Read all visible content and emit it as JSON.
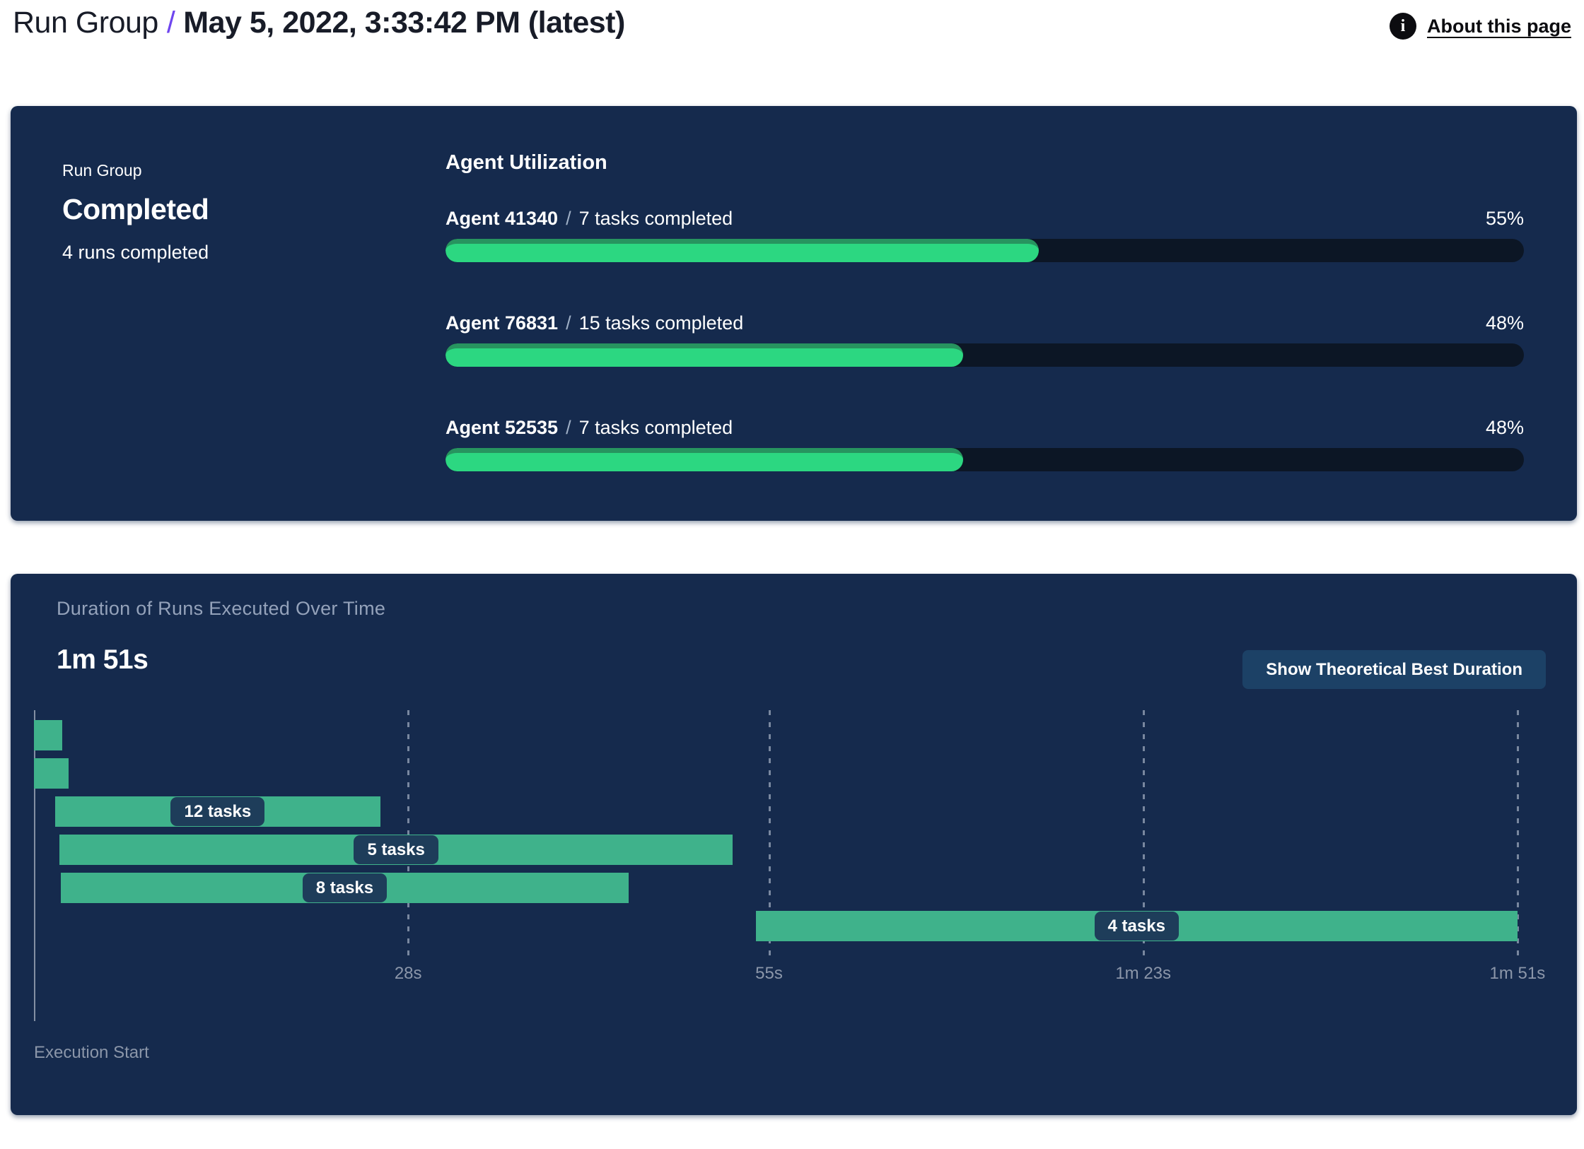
{
  "header": {
    "breadcrumb": "Run Group",
    "separator": "/",
    "title": "May 5, 2022, 3:33:42 PM (latest)",
    "about": {
      "icon": "i",
      "label": "About this page"
    }
  },
  "colors": {
    "panel_background": "#152a4d",
    "progress_fill": "#2cd781",
    "progress_fill_shade": "#27945f",
    "progress_track": "#0c1625",
    "gantt_bar": "#3fb28b",
    "gantt_label_pill": "#1e3d5a",
    "button_background": "#1c4166",
    "breadcrumb_separator": "#6f46ef",
    "muted_text": "#94a2ba"
  },
  "run_group_panel": {
    "eyebrow": "Run Group",
    "status": "Completed",
    "subtitle": "4 runs completed",
    "utilization_title": "Agent Utilization",
    "separator": "/",
    "agents": [
      {
        "name": "Agent 41340",
        "detail": "7 tasks completed",
        "percent": 55,
        "percent_label": "55%"
      },
      {
        "name": "Agent 76831",
        "detail": "15 tasks completed",
        "percent": 48,
        "percent_label": "48%"
      },
      {
        "name": "Agent 52535",
        "detail": "7 tasks completed",
        "percent": 48,
        "percent_label": "48%"
      }
    ]
  },
  "duration_panel": {
    "title": "Duration of Runs Executed Over Time",
    "total_duration": "1m 51s",
    "button_label": "Show Theoretical Best Duration",
    "x_axis_label": "Execution Start"
  },
  "chart_data": {
    "type": "gantt",
    "title": "Duration of Runs Executed Over Time",
    "total_duration_label": "1m 51s",
    "total_seconds": 111,
    "x_axis_label": "Execution Start",
    "legend": "none",
    "x_ticks": [
      {
        "label": "28s",
        "seconds": 28
      },
      {
        "label": "55s",
        "seconds": 55
      },
      {
        "label": "1m 23s",
        "seconds": 83
      },
      {
        "label": "1m 51s",
        "seconds": 111
      }
    ],
    "runs": [
      {
        "label": "",
        "start_s": 0,
        "end_s": 2.1
      },
      {
        "label": "",
        "start_s": 0,
        "end_s": 2.6
      },
      {
        "label": "12 tasks",
        "start_s": 1.6,
        "end_s": 25.9
      },
      {
        "label": "5 tasks",
        "start_s": 1.9,
        "end_s": 52.3
      },
      {
        "label": "8 tasks",
        "start_s": 2.0,
        "end_s": 44.5
      },
      {
        "label": "4 tasks",
        "start_s": 54.0,
        "end_s": 111
      }
    ]
  }
}
